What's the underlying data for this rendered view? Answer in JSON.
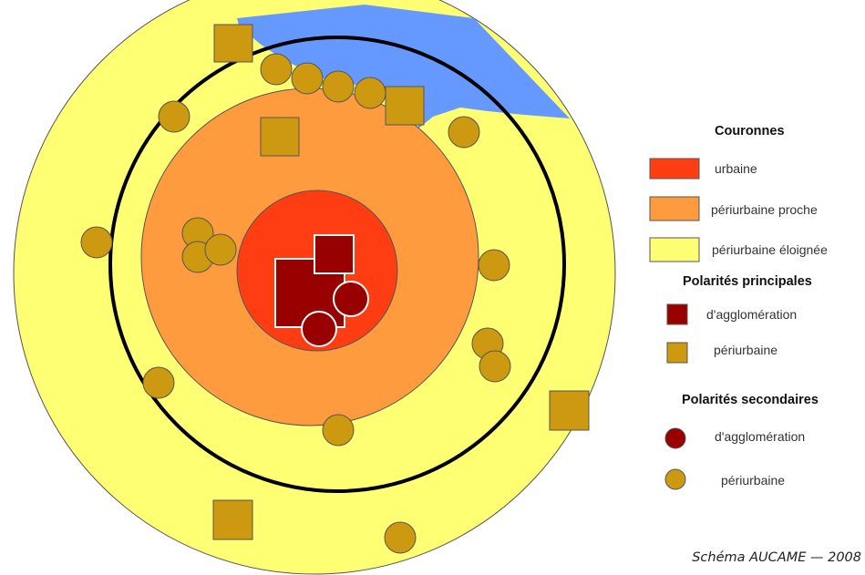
{
  "legend": {
    "couronnes": {
      "heading": "Couronnes",
      "items": [
        {
          "label": "urbaine",
          "color": "#ff3d12"
        },
        {
          "label": "périurbaine proche",
          "color": "#ff9b3f"
        },
        {
          "label": "périurbaine éloignée",
          "color": "#ffff73"
        }
      ]
    },
    "polarites_principales": {
      "heading": "Polarités principales",
      "items": [
        {
          "label": "d'agglomération",
          "color": "#990000",
          "shape": "square"
        },
        {
          "label": "périurbaine",
          "color": "#cc9910",
          "shape": "square"
        }
      ]
    },
    "polarites_secondaires": {
      "heading": "Polarités secondaires",
      "items": [
        {
          "label": "d'agglomération",
          "color": "#990000",
          "shape": "circle"
        },
        {
          "label": "périurbaine",
          "color": "#cc9910",
          "shape": "circle"
        }
      ]
    }
  },
  "credit": "Schéma AUCAME — 2008",
  "colors": {
    "water": "#6699ff",
    "outline": "#000000"
  }
}
